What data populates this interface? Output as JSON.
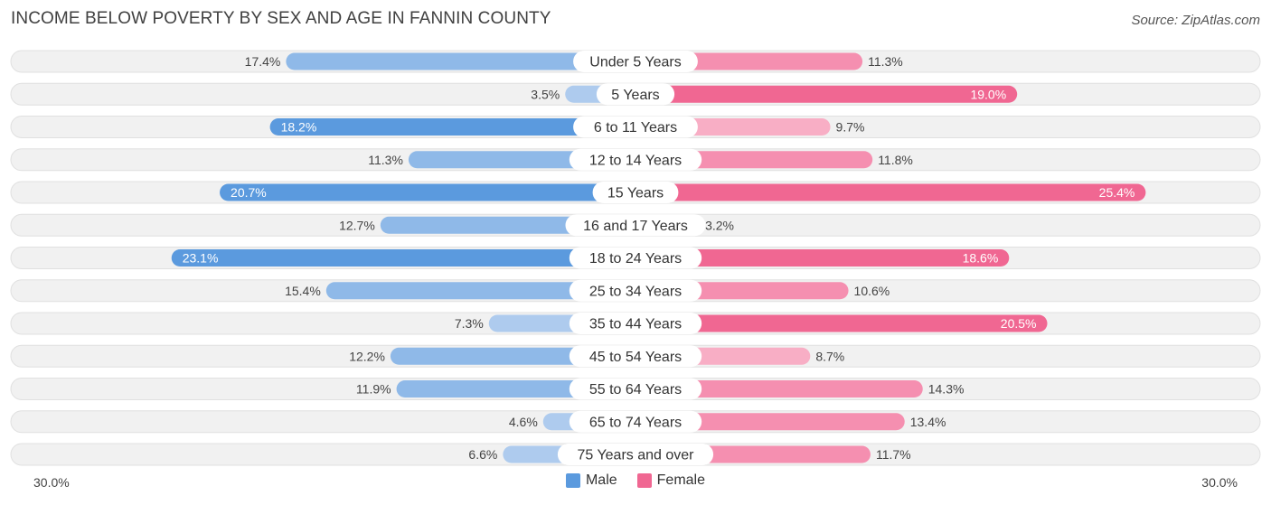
{
  "header": {
    "title": "INCOME BELOW POVERTY BY SEX AND AGE IN FANNIN COUNTY",
    "source": "Source: ZipAtlas.com"
  },
  "colors": {
    "male_dark": "#5b9ade",
    "male_light": "#aecbee",
    "female_dark": "#f06792",
    "female_light": "#f8aec5",
    "track": "#f1f1f1",
    "track_border": "#e0e0e0"
  },
  "legend": {
    "male_label": "Male",
    "female_label": "Female"
  },
  "axis": {
    "left_label": "30.0%",
    "right_label": "30.0%"
  },
  "chart_data": {
    "type": "bar",
    "orientation": "horizontal-diverging",
    "title": "INCOME BELOW POVERTY BY SEX AND AGE IN FANNIN COUNTY",
    "xlim": [
      -30,
      30
    ],
    "unit": "%",
    "categories": [
      "Under 5 Years",
      "5 Years",
      "6 to 11 Years",
      "12 to 14 Years",
      "15 Years",
      "16 and 17 Years",
      "18 to 24 Years",
      "25 to 34 Years",
      "35 to 44 Years",
      "45 to 54 Years",
      "55 to 64 Years",
      "65 to 74 Years",
      "75 Years and over"
    ],
    "series": [
      {
        "name": "Male",
        "values": [
          17.4,
          3.5,
          18.2,
          11.3,
          20.7,
          12.7,
          23.1,
          15.4,
          7.3,
          12.2,
          11.9,
          4.6,
          6.6
        ],
        "labels": [
          "17.4%",
          "3.5%",
          "18.2%",
          "11.3%",
          "20.7%",
          "12.7%",
          "23.1%",
          "15.4%",
          "7.3%",
          "12.2%",
          "11.9%",
          "4.6%",
          "6.6%"
        ]
      },
      {
        "name": "Female",
        "values": [
          11.3,
          19.0,
          9.7,
          11.8,
          25.4,
          3.2,
          18.6,
          10.6,
          20.5,
          8.7,
          14.3,
          13.4,
          11.7
        ],
        "labels": [
          "11.3%",
          "19.0%",
          "9.7%",
          "11.8%",
          "25.4%",
          "3.2%",
          "18.6%",
          "10.6%",
          "20.5%",
          "8.7%",
          "14.3%",
          "13.4%",
          "11.7%"
        ]
      }
    ]
  }
}
